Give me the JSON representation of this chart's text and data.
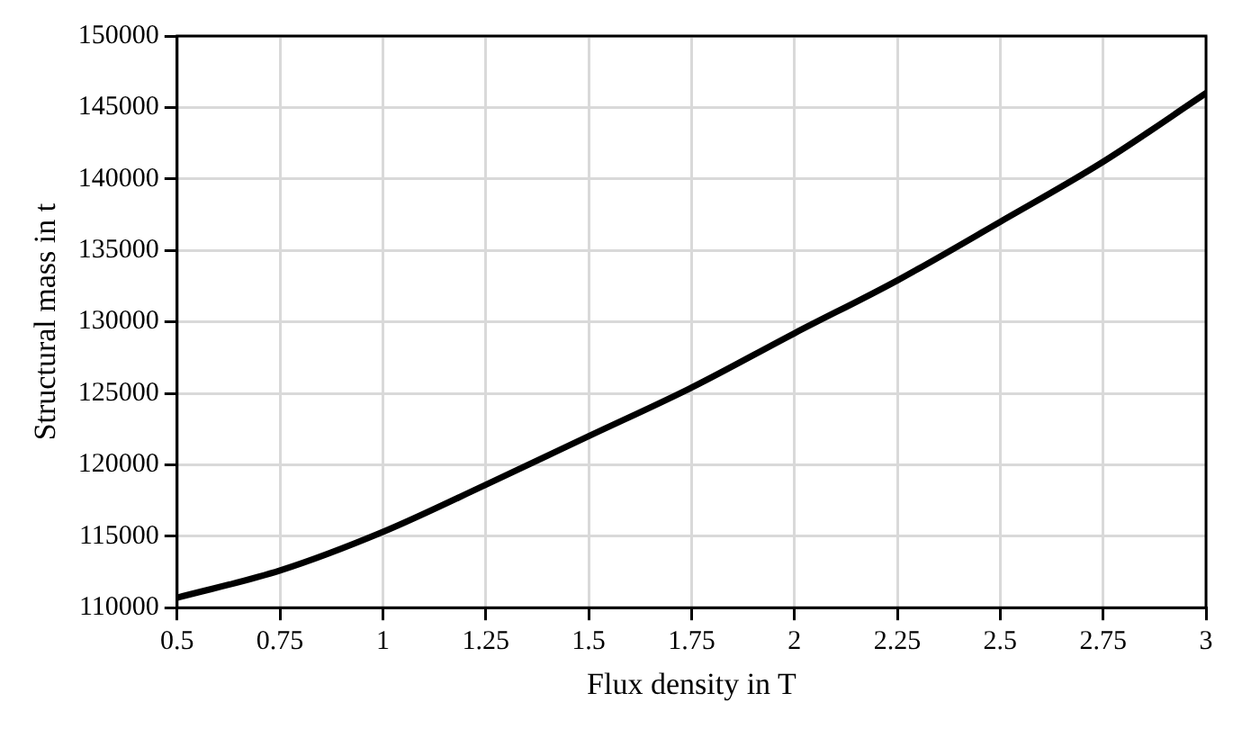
{
  "chart_data": {
    "type": "line",
    "xlabel": "Flux density in T",
    "ylabel": "Structural mass in t",
    "x": [
      0.5,
      0.75,
      1,
      1.25,
      1.5,
      1.75,
      2,
      2.25,
      2.5,
      2.75,
      3
    ],
    "series": [
      {
        "color": "#000000",
        "values": [
          110700,
          112600,
          115300,
          118600,
          122000,
          125400,
          129200,
          132900,
          137000,
          141200,
          146000
        ]
      }
    ],
    "xlim": [
      0.5,
      3
    ],
    "xticks": [
      0.5,
      0.75,
      1,
      1.25,
      1.5,
      1.75,
      2,
      2.25,
      2.5,
      2.75,
      3
    ],
    "ylim": [
      110000,
      150000
    ],
    "yticks": [
      110000,
      115000,
      120000,
      125000,
      130000,
      135000,
      140000,
      145000,
      150000
    ],
    "grid": true,
    "legend": false,
    "marker": "none",
    "line_style": "solid"
  }
}
